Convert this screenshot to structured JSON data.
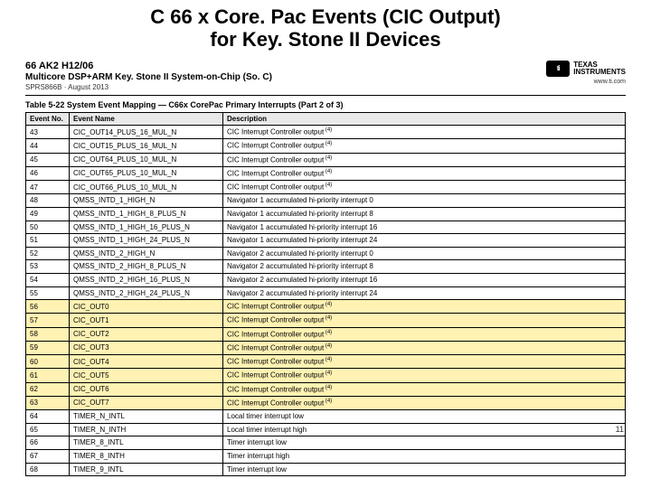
{
  "title_line1": "C 66 x Core. Pac Events (CIC Output)",
  "title_line2": "for Key. Stone II Devices",
  "doc": {
    "partno": "66 AK2 H12/06",
    "title": "Multicore DSP+ARM Key. Stone II System-on-Chip (So. C)",
    "sub": "SPRS866B · August 2013",
    "brand1": "TEXAS",
    "brand2": "INSTRUMENTS",
    "url": "www.ti.com"
  },
  "caption": "Table 5-22    System Event Mapping — C66x CorePac Primary Interrupts (Part 2 of 3)",
  "columns": [
    "Event No.",
    "Event Name",
    "Description"
  ],
  "rows": [
    {
      "hl": false,
      "no": "43",
      "name": "CIC_OUT14_PLUS_16_MUL_N",
      "desc": "CIC Interrupt Controller output",
      "sup": "(4)"
    },
    {
      "hl": false,
      "no": "44",
      "name": "CIC_OUT15_PLUS_16_MUL_N",
      "desc": "CIC Interrupt Controller output",
      "sup": "(4)"
    },
    {
      "hl": false,
      "no": "45",
      "name": "CIC_OUT64_PLUS_10_MUL_N",
      "desc": "CIC Interrupt Controller output",
      "sup": "(4)"
    },
    {
      "hl": false,
      "no": "46",
      "name": "CIC_OUT65_PLUS_10_MUL_N",
      "desc": "CIC Interrupt Controller output",
      "sup": "(4)"
    },
    {
      "hl": false,
      "no": "47",
      "name": "CIC_OUT66_PLUS_10_MUL_N",
      "desc": "CIC Interrupt Controller output",
      "sup": "(4)"
    },
    {
      "hl": false,
      "no": "48",
      "name": "QMSS_INTD_1_HIGH_N",
      "desc": "Navigator 1 accumulated hi-priority interrupt 0",
      "sup": ""
    },
    {
      "hl": false,
      "no": "49",
      "name": "QMSS_INTD_1_HIGH_8_PLUS_N",
      "desc": "Navigator 1 accumulated hi-priority interrupt 8",
      "sup": ""
    },
    {
      "hl": false,
      "no": "50",
      "name": "QMSS_INTD_1_HIGH_16_PLUS_N",
      "desc": "Navigator 1 accumulated hi-priority interrupt 16",
      "sup": ""
    },
    {
      "hl": false,
      "no": "51",
      "name": "QMSS_INTD_1_HIGH_24_PLUS_N",
      "desc": "Navigator 1 accumulated hi-priority interrupt 24",
      "sup": ""
    },
    {
      "hl": false,
      "no": "52",
      "name": "QMSS_INTD_2_HIGH_N",
      "desc": "Navigator 2 accumulated hi-priority interrupt 0",
      "sup": ""
    },
    {
      "hl": false,
      "no": "53",
      "name": "QMSS_INTD_2_HIGH_8_PLUS_N",
      "desc": "Navigator 2 accumulated hi-priority interrupt 8",
      "sup": ""
    },
    {
      "hl": false,
      "no": "54",
      "name": "QMSS_INTD_2_HIGH_16_PLUS_N",
      "desc": "Navigator 2 accumulated hi-priority interrupt 16",
      "sup": ""
    },
    {
      "hl": false,
      "no": "55",
      "name": "QMSS_INTD_2_HIGH_24_PLUS_N",
      "desc": "Navigator 2 accumulated hi-priority interrupt 24",
      "sup": ""
    },
    {
      "hl": true,
      "no": "56",
      "name": "CIC_OUT0",
      "desc": "CIC Interrupt Controller output",
      "sup": "(4)"
    },
    {
      "hl": true,
      "no": "57",
      "name": "CIC_OUT1",
      "desc": "CIC Interrupt Controller output",
      "sup": "(4)"
    },
    {
      "hl": true,
      "no": "58",
      "name": "CIC_OUT2",
      "desc": "CIC Interrupt Controller output",
      "sup": "(4)"
    },
    {
      "hl": true,
      "no": "59",
      "name": "CIC_OUT3",
      "desc": "CIC Interrupt Controller output",
      "sup": "(4)"
    },
    {
      "hl": true,
      "no": "60",
      "name": "CIC_OUT4",
      "desc": "CIC Interrupt Controller output",
      "sup": "(4)"
    },
    {
      "hl": true,
      "no": "61",
      "name": "CIC_OUT5",
      "desc": "CIC Interrupt Controller output",
      "sup": "(4)"
    },
    {
      "hl": true,
      "no": "62",
      "name": "CIC_OUT6",
      "desc": "CIC Interrupt Controller output",
      "sup": "(4)"
    },
    {
      "hl": true,
      "no": "63",
      "name": "CIC_OUT7",
      "desc": "CIC Interrupt Controller output",
      "sup": "(4)"
    },
    {
      "hl": false,
      "no": "64",
      "name": "TIMER_N_INTL",
      "desc": "Local timer interrupt low",
      "sup": ""
    },
    {
      "hl": false,
      "no": "65",
      "name": "TIMER_N_INTH",
      "desc": "Local timer interrupt high",
      "sup": ""
    },
    {
      "hl": false,
      "no": "66",
      "name": "TIMER_8_INTL",
      "desc": "Timer interrupt low",
      "sup": ""
    },
    {
      "hl": false,
      "no": "67",
      "name": "TIMER_8_INTH",
      "desc": "Timer interrupt high",
      "sup": ""
    },
    {
      "hl": false,
      "no": "68",
      "name": "TIMER_9_INTL",
      "desc": "Timer interrupt low",
      "sup": ""
    }
  ],
  "page_no": "11"
}
